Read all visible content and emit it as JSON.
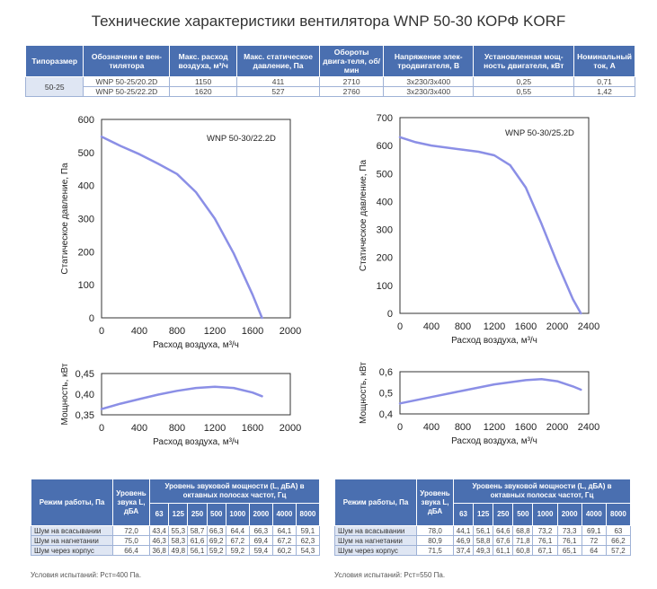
{
  "title": "Технические характеристики вентилятора WNP 50-30 КОРФ KORF",
  "spec_table": {
    "headers": [
      "Типоразмер",
      "Обозначени е вен-тилятора",
      "Макс. расход воздуха, м³/ч",
      "Макс. статическое давление, Па",
      "Обороты двига-теля, об/мин",
      "Напряжение элек-тродвигателя, В",
      "Установленная мощ-ность двигателя, кВт",
      "Номинальный ток, А"
    ],
    "group": "50-25",
    "rows": [
      [
        "WNP 50-25/20.2D",
        "1150",
        "411",
        "2710",
        "3х230/3х400",
        "0,25",
        "0,71"
      ],
      [
        "WNP 50-25/22.2D",
        "1620",
        "527",
        "2760",
        "3х230/3х400",
        "0,55",
        "1,42"
      ]
    ]
  },
  "chart_data": [
    {
      "type": "line",
      "annotation": "WNP 50-30/22.2D",
      "xlabel": "Расход воздуха, м³/ч",
      "ylabel": "Статическое давление, Па",
      "xlim": [
        0,
        2000
      ],
      "ylim": [
        0,
        600
      ],
      "xticks": [
        "0",
        "400",
        "800",
        "1200",
        "1600",
        "2000"
      ],
      "yticks": [
        "0",
        "100",
        "200",
        "300",
        "400",
        "500",
        "600"
      ],
      "series": [
        {
          "x": [
            0,
            200,
            400,
            600,
            800,
            1000,
            1200,
            1400,
            1600,
            1700
          ],
          "y": [
            548,
            520,
            495,
            466,
            435,
            380,
            300,
            195,
            70,
            0
          ]
        }
      ]
    },
    {
      "type": "line",
      "annotation": "WNP 50-30/25.2D",
      "xlabel": "Расход воздуха, м³/ч",
      "ylabel": "Статическое давление, Па",
      "xlim": [
        0,
        2400
      ],
      "ylim": [
        0,
        700
      ],
      "xticks": [
        "0",
        "400",
        "800",
        "1200",
        "1600",
        "2000",
        "2400"
      ],
      "yticks": [
        "0",
        "100",
        "200",
        "300",
        "400",
        "500",
        "600",
        "700"
      ],
      "series": [
        {
          "x": [
            0,
            200,
            400,
            800,
            1000,
            1200,
            1400,
            1600,
            1800,
            2000,
            2200,
            2300
          ],
          "y": [
            630,
            612,
            600,
            585,
            578,
            565,
            530,
            450,
            320,
            180,
            50,
            0
          ]
        }
      ]
    },
    {
      "type": "line",
      "xlabel": "Расход воздуха, м³/ч",
      "ylabel": "Мощность, кВт",
      "xlim": [
        0,
        2000
      ],
      "ylim": [
        0.35,
        0.45
      ],
      "xticks": [
        "0",
        "400",
        "800",
        "1200",
        "1600",
        "2000"
      ],
      "yticks": [
        "0,35",
        "0,40",
        "0,45"
      ],
      "series": [
        {
          "x": [
            0,
            200,
            400,
            600,
            800,
            1000,
            1200,
            1400,
            1600,
            1700
          ],
          "y": [
            0.364,
            0.377,
            0.388,
            0.399,
            0.408,
            0.415,
            0.418,
            0.415,
            0.404,
            0.395
          ]
        }
      ]
    },
    {
      "type": "line",
      "xlabel": "Расход воздуха, м³/ч",
      "ylabel": "Мощность, кВт",
      "xlim": [
        0,
        2400
      ],
      "ylim": [
        0.4,
        0.6
      ],
      "xticks": [
        "0",
        "400",
        "800",
        "1200",
        "1600",
        "2000",
        "2400"
      ],
      "yticks": [
        "0,4",
        "0,5",
        "0,6"
      ],
      "series": [
        {
          "x": [
            0,
            400,
            800,
            1200,
            1600,
            1800,
            2000,
            2200,
            2300
          ],
          "y": [
            0.45,
            0.48,
            0.51,
            0.54,
            0.56,
            0.565,
            0.555,
            0.53,
            0.515
          ]
        }
      ]
    }
  ],
  "noise_tables": [
    {
      "mode_header": "Режим работы, Па",
      "level_header": "Уровень звука L, дБА",
      "power_header": "Уровень звуковой мощности (L, дБА) в октавных полосах частот, Гц",
      "freqs": [
        "63",
        "125",
        "250",
        "500",
        "1000",
        "2000",
        "4000",
        "8000"
      ],
      "rows": [
        {
          "label": "Шум на всасывании",
          "level": "72,0",
          "values": [
            "43,4",
            "55,3",
            "58,7",
            "66,3",
            "64,4",
            "66,3",
            "64,1",
            "59,1"
          ]
        },
        {
          "label": "Шум на нагнетании",
          "level": "75,0",
          "values": [
            "46,3",
            "58,3",
            "61,6",
            "69,2",
            "67,2",
            "69,4",
            "67,2",
            "62,3"
          ]
        },
        {
          "label": "Шум через корпус",
          "level": "66,4",
          "values": [
            "36,8",
            "49,8",
            "56,1",
            "59,2",
            "59,2",
            "59,4",
            "60,2",
            "54,3"
          ]
        }
      ],
      "conditions": "Условия испытаний: Рст=400 Па."
    },
    {
      "mode_header": "Режим работы, Па",
      "level_header": "Уровень звука L, дБА",
      "power_header": "Уровень звуковой мощности (L, дБА) в октавных полосах частот, Гц",
      "freqs": [
        "63",
        "125",
        "250",
        "500",
        "1000",
        "2000",
        "4000",
        "8000"
      ],
      "rows": [
        {
          "label": "Шум на всасывании",
          "level": "78,0",
          "values": [
            "44,1",
            "56,1",
            "64,6",
            "68,8",
            "73,2",
            "73,3",
            "69,1",
            "63"
          ]
        },
        {
          "label": "Шум на нагнетании",
          "level": "80,9",
          "values": [
            "46,9",
            "58,8",
            "67,6",
            "71,8",
            "76,1",
            "76,1",
            "72",
            "66,2"
          ]
        },
        {
          "label": "Шум через корпус",
          "level": "71,5",
          "values": [
            "37,4",
            "49,3",
            "61,1",
            "60,8",
            "67,1",
            "65,1",
            "64",
            "57,2"
          ]
        }
      ],
      "conditions": "Условия испытаний: Рст=550 Па."
    }
  ]
}
